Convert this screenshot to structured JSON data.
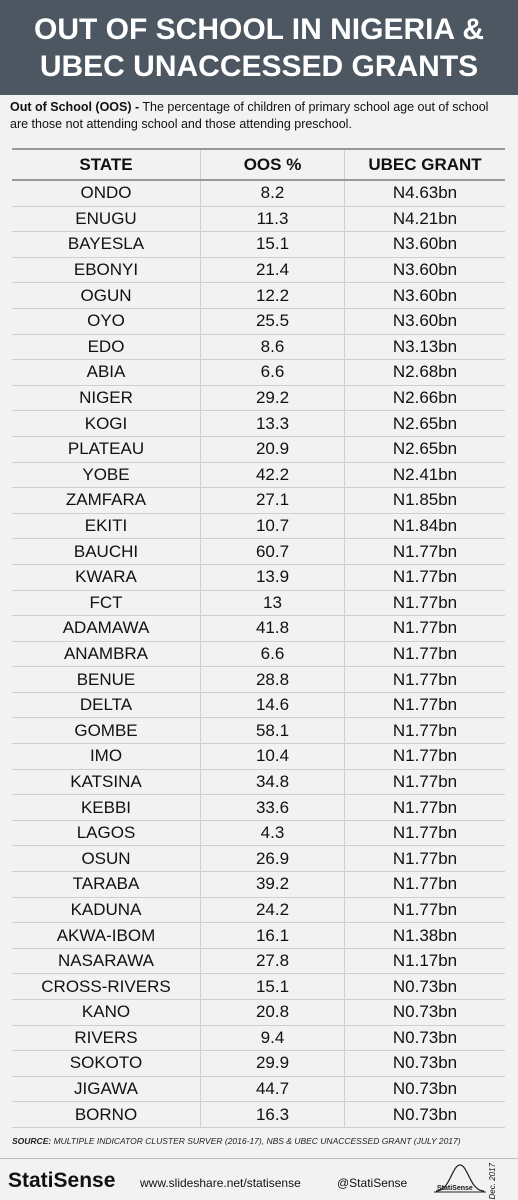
{
  "header": {
    "title_lines": [
      "OUT OF SCHOOL IN NIGERIA &",
      "UBEC UNACCESSED GRANTS"
    ]
  },
  "definition": {
    "term": "Out of School (OOS) -",
    "text": "The percentage of children of primary school age out of school are those not attending school and those attending preschool."
  },
  "table": {
    "columns": [
      "STATE",
      "OOS %",
      "UBEC GRANT"
    ],
    "rows": [
      [
        "ONDO",
        8.2,
        "N4.63bn"
      ],
      [
        "ENUGU",
        11.3,
        "N4.21bn"
      ],
      [
        "BAYESLA",
        15.1,
        "N3.60bn"
      ],
      [
        "EBONYI",
        21.4,
        "N3.60bn"
      ],
      [
        "OGUN",
        12.2,
        "N3.60bn"
      ],
      [
        "OYO",
        25.5,
        "N3.60bn"
      ],
      [
        "EDO",
        8.6,
        "N3.13bn"
      ],
      [
        "ABIA",
        6.6,
        "N2.68bn"
      ],
      [
        "NIGER",
        29.2,
        "N2.66bn"
      ],
      [
        "KOGI",
        13.3,
        "N2.65bn"
      ],
      [
        "PLATEAU",
        20.9,
        "N2.65bn"
      ],
      [
        "YOBE",
        42.2,
        "N2.41bn"
      ],
      [
        "ZAMFARA",
        27.1,
        "N1.85bn"
      ],
      [
        "EKITI",
        10.7,
        "N1.84bn"
      ],
      [
        "BAUCHI",
        60.7,
        "N1.77bn"
      ],
      [
        "KWARA",
        13.9,
        "N1.77bn"
      ],
      [
        "FCT",
        13,
        "N1.77bn"
      ],
      [
        "ADAMAWA",
        41.8,
        "N1.77bn"
      ],
      [
        "ANAMBRA",
        6.6,
        "N1.77bn"
      ],
      [
        "BENUE",
        28.8,
        "N1.77bn"
      ],
      [
        "DELTA",
        14.6,
        "N1.77bn"
      ],
      [
        "GOMBE",
        58.1,
        "N1.77bn"
      ],
      [
        "IMO",
        10.4,
        "N1.77bn"
      ],
      [
        "KATSINA",
        34.8,
        "N1.77bn"
      ],
      [
        "KEBBI",
        33.6,
        "N1.77bn"
      ],
      [
        "LAGOS",
        4.3,
        "N1.77bn"
      ],
      [
        "OSUN",
        26.9,
        "N1.77bn"
      ],
      [
        "TARABA",
        39.2,
        "N1.77bn"
      ],
      [
        "KADUNA",
        24.2,
        "N1.77bn"
      ],
      [
        "AKWA-IBOM",
        16.1,
        "N1.38bn"
      ],
      [
        "NASARAWA",
        27.8,
        "N1.17bn"
      ],
      [
        "CROSS-RIVERS",
        15.1,
        "N0.73bn"
      ],
      [
        "KANO",
        20.8,
        "N0.73bn"
      ],
      [
        "RIVERS",
        9.4,
        "N0.73bn"
      ],
      [
        "SOKOTO",
        29.9,
        "N0.73bn"
      ],
      [
        "JIGAWA",
        44.7,
        "N0.73bn"
      ],
      [
        "BORNO",
        16.3,
        "N0.73bn"
      ]
    ]
  },
  "source": {
    "label": "SOURCE:",
    "text": "MULTIPLE INDICATOR CLUSTER SURVER (2016-17), NBS & UBEC UNACCESSED GRANT (JULY 2017)"
  },
  "footer": {
    "brand": "StatiSense",
    "url": "www.slideshare.net/statisense",
    "handle": "@StatiSense",
    "date": "Dec. 2017",
    "logo": "StatiSense"
  }
}
